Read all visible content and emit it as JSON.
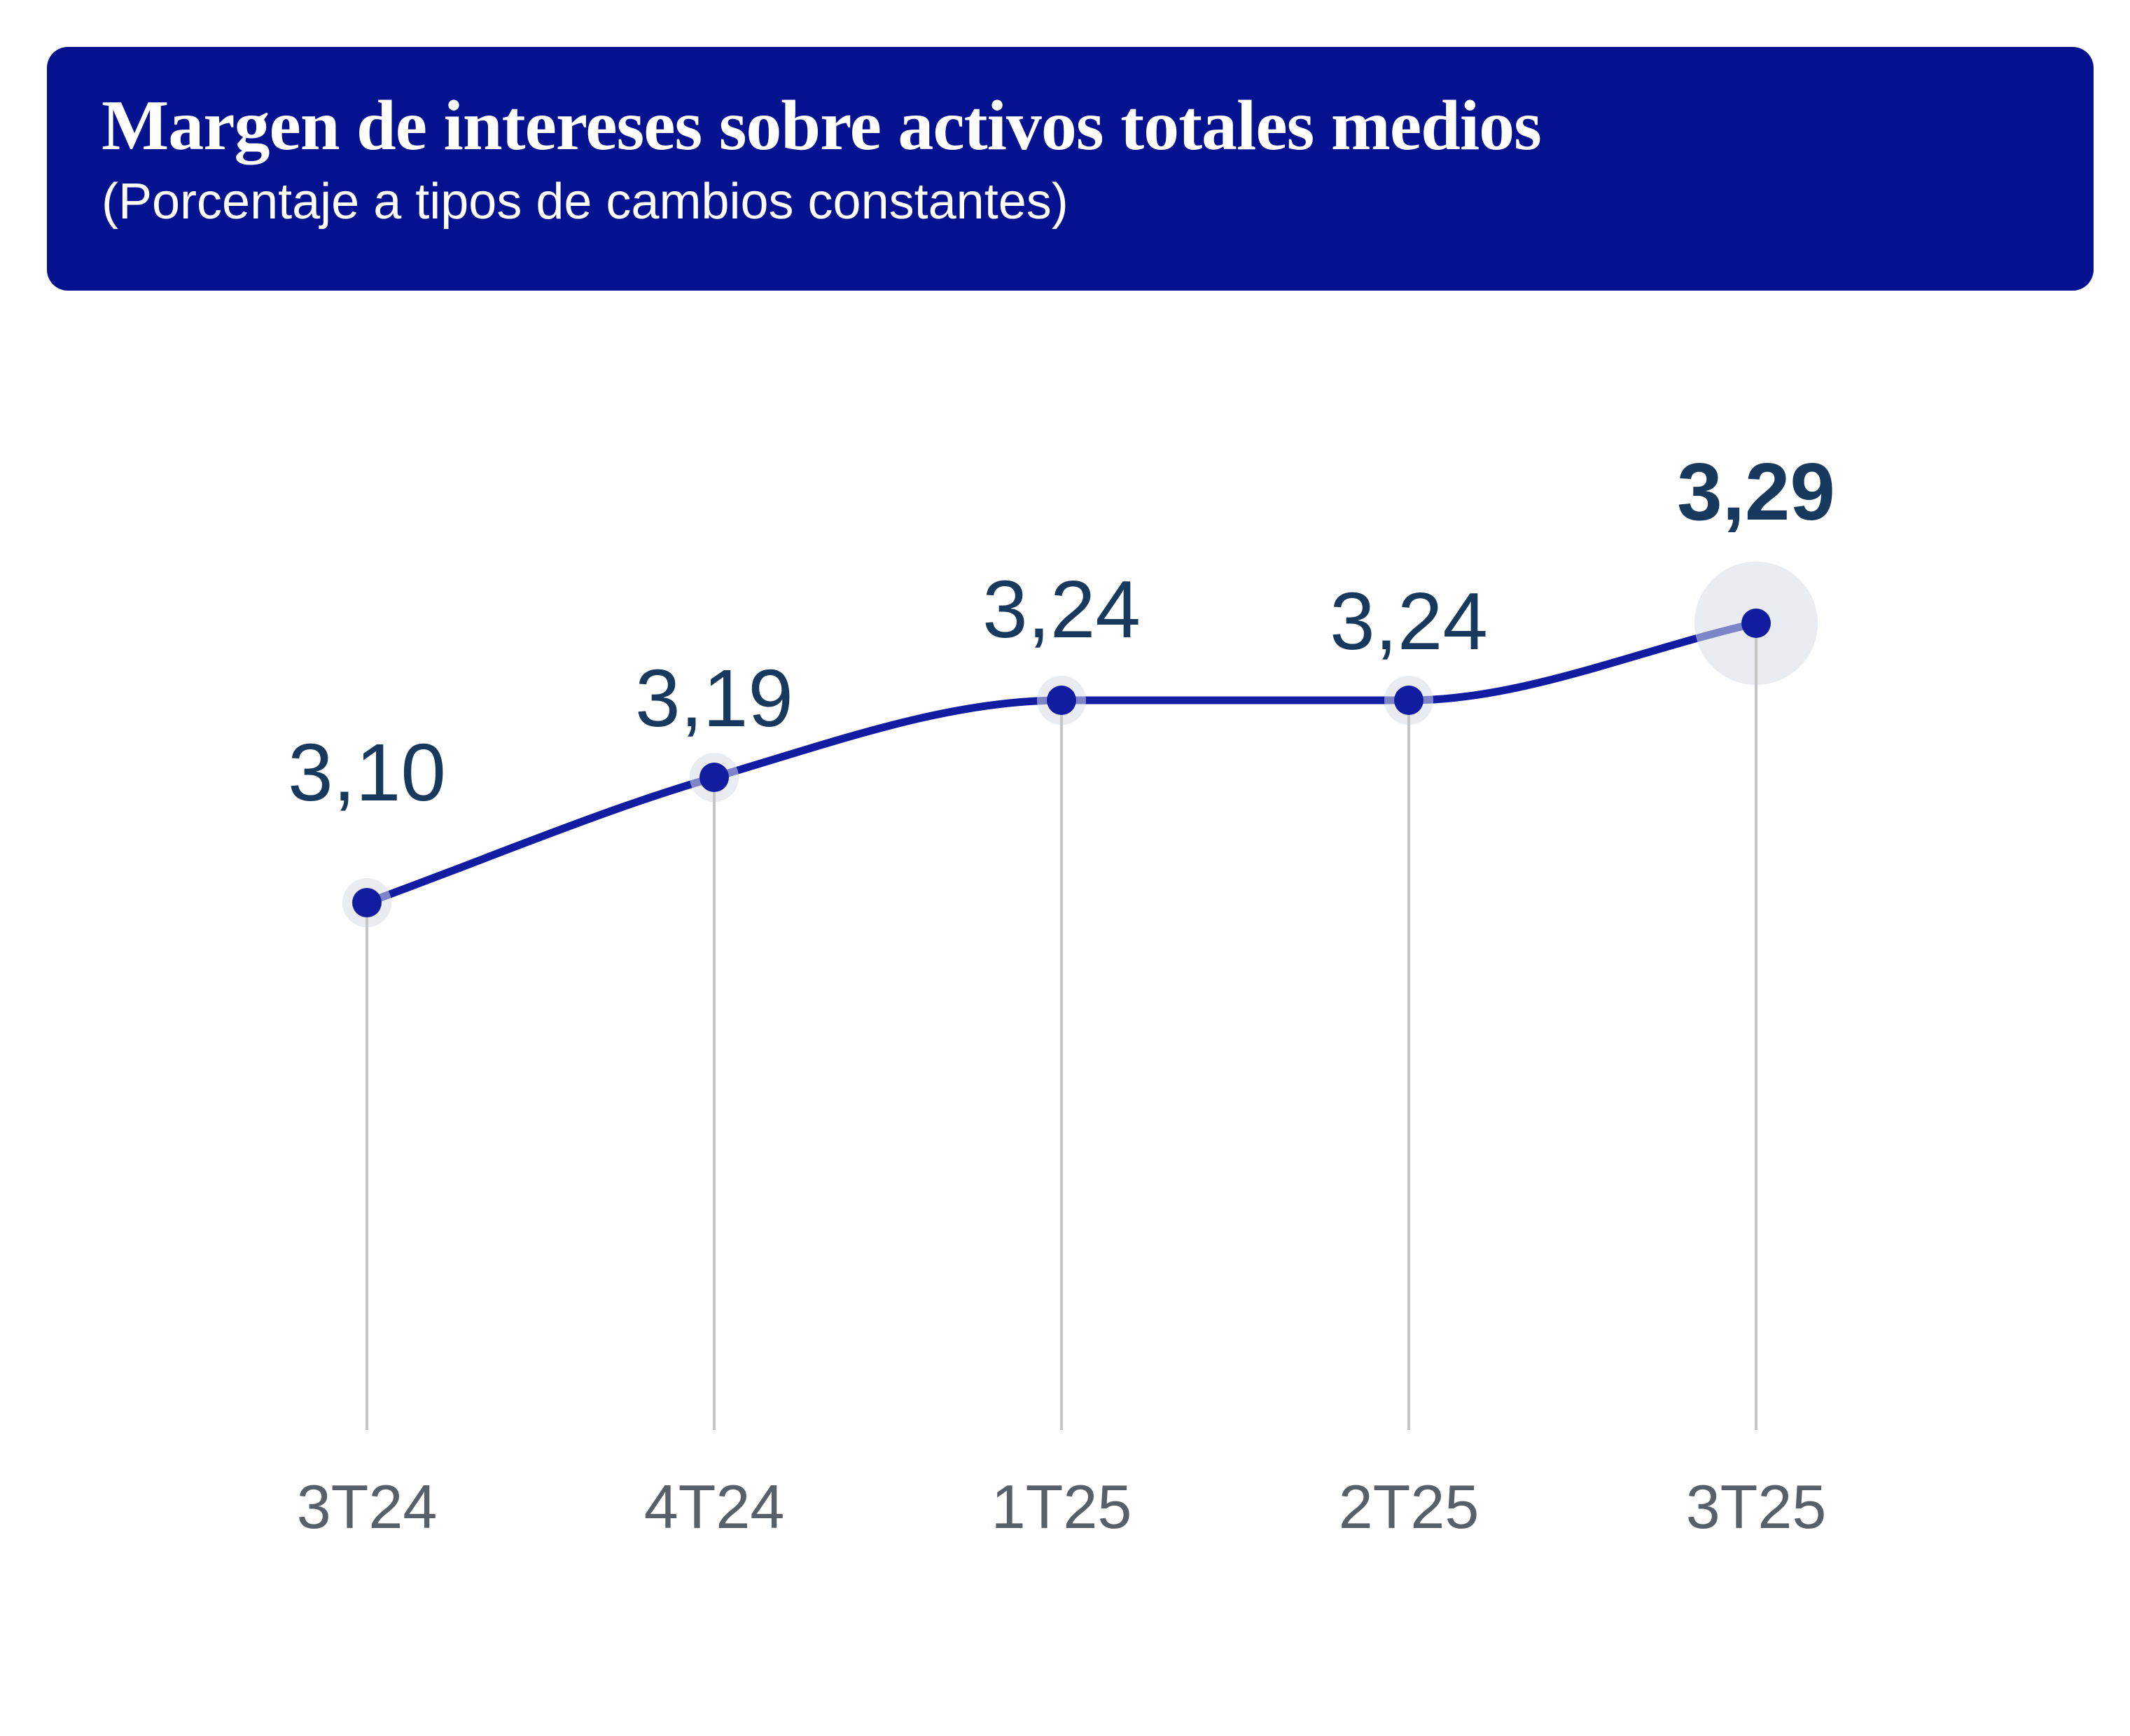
{
  "header": {
    "title": "Margen de intereses sobre activos totales medios",
    "subtitle": "(Porcentaje a tipos de cambios constantes)"
  },
  "chart_data": {
    "type": "line",
    "title": "Margen de intereses sobre activos totales medios",
    "subtitle": "(Porcentaje a tipos de cambios constantes)",
    "categories": [
      "3T24",
      "4T24",
      "1T25",
      "2T25",
      "3T25"
    ],
    "values": [
      3.1,
      3.19,
      3.24,
      3.24,
      3.29
    ],
    "value_labels": [
      "3,10",
      "3,19",
      "3,24",
      "3,24",
      "3,29"
    ],
    "emphasized_index": 4,
    "decimal_separator": ",",
    "ylim": [
      3.0,
      3.35
    ],
    "grid": "off",
    "legend": "none"
  },
  "colors": {
    "header_bg": "#05128F",
    "header_text": "#ffffff",
    "line": "#121CA0",
    "point": "#121CA0",
    "halo": "#E9ECF0",
    "stem": "#C3C5C7",
    "value_label": "#17395E",
    "category_label": "#575F68",
    "background": "#ffffff"
  }
}
